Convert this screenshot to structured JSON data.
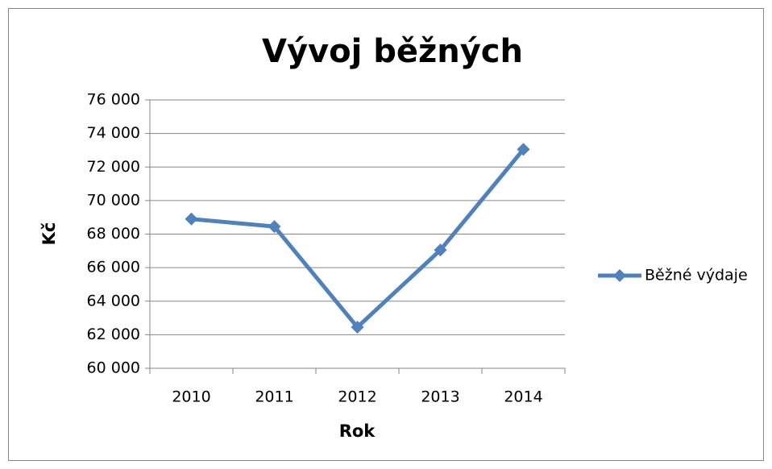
{
  "chart_data": {
    "type": "line",
    "title": "Vývoj běžných",
    "x_label": "Rok",
    "y_label": "Kč",
    "categories": [
      "2010",
      "2011",
      "2012",
      "2013",
      "2014"
    ],
    "series": [
      {
        "name": "Běžné výdaje",
        "color": "#4f81bd",
        "values": [
          68900,
          68450,
          62450,
          67050,
          73050
        ]
      }
    ],
    "ylim": [
      60000,
      76000
    ],
    "yticks": [
      {
        "value": 60000,
        "label": "60 000"
      },
      {
        "value": 62000,
        "label": "62 000"
      },
      {
        "value": 64000,
        "label": "64 000"
      },
      {
        "value": 66000,
        "label": "66 000"
      },
      {
        "value": 68000,
        "label": "68 000"
      },
      {
        "value": 70000,
        "label": "70 000"
      },
      {
        "value": 72000,
        "label": "72 000"
      },
      {
        "value": 74000,
        "label": "74 000"
      },
      {
        "value": 76000,
        "label": "76 000"
      }
    ],
    "grid": true,
    "legend": "right"
  }
}
